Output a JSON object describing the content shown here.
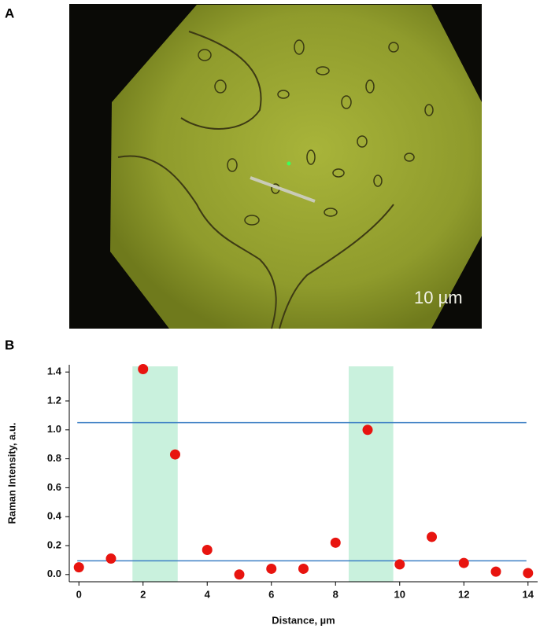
{
  "image_panel": {
    "label": "A",
    "scale_label": "10 µm"
  },
  "chart_data": {
    "type": "scatter",
    "panel_label": "B",
    "x_label": "Distance, µm",
    "y_label": "Raman Intensity, a.u.",
    "x": [
      0,
      1,
      2,
      3,
      4,
      5,
      6,
      7,
      8,
      9,
      10,
      11,
      12,
      13,
      14
    ],
    "values": [
      0.05,
      0.11,
      1.42,
      0.83,
      0.17,
      0.0,
      0.04,
      0.04,
      0.22,
      1.0,
      0.07,
      0.26,
      0.08,
      0.02,
      0.01
    ],
    "color": "#e8140f",
    "xlim": [
      -0.3,
      14.3
    ],
    "ylim": [
      -0.05,
      1.45
    ],
    "xticks": [
      0,
      2,
      4,
      6,
      8,
      10,
      12,
      14
    ],
    "yticks": [
      {
        "value": 0,
        "label": "0.0"
      },
      0.2,
      0.4,
      0.6,
      0.8,
      {
        "value": 1,
        "label": "1.0"
      },
      1.2,
      1.4
    ],
    "hlines": [
      1.05,
      0.095
    ],
    "hline_color": "#3c7fc4",
    "bands": [
      [
        1.67,
        3.08
      ],
      [
        8.41,
        9.8
      ]
    ],
    "band_color": "#c9f1dd"
  }
}
